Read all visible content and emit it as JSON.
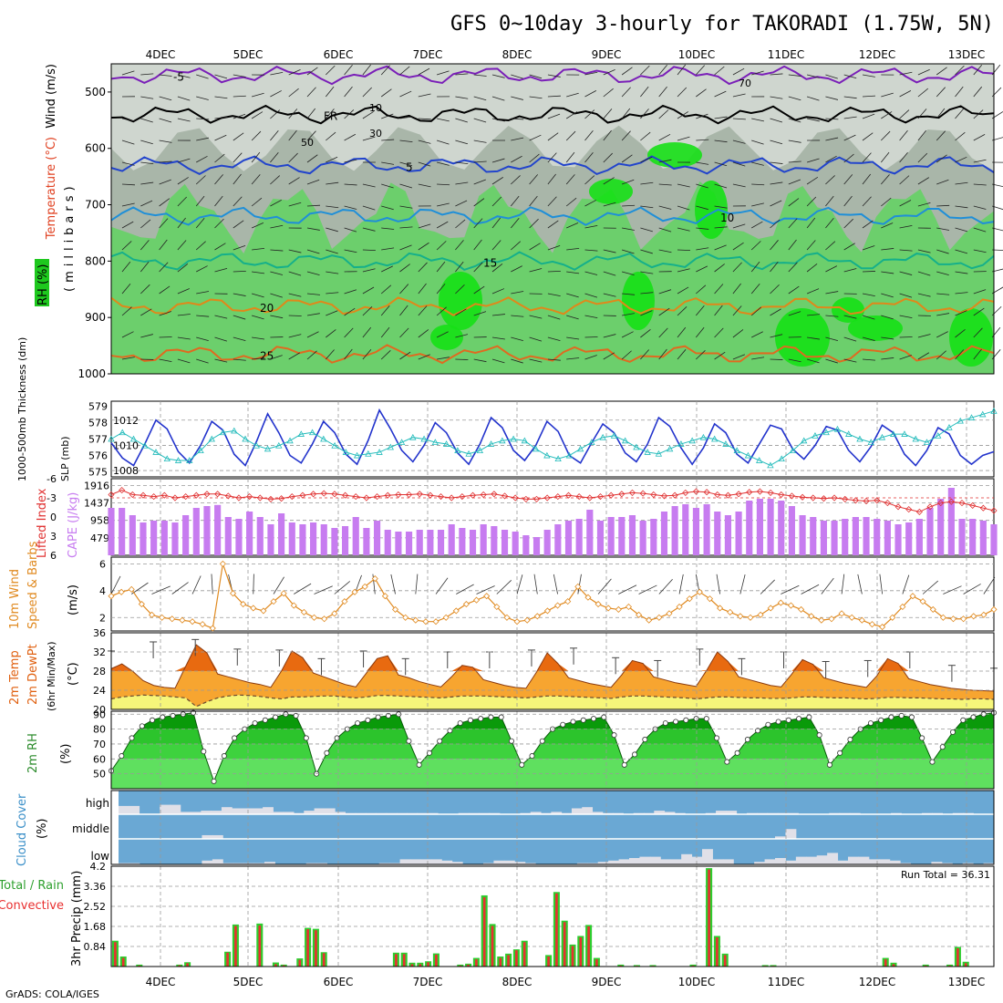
{
  "title": "GFS 0~10day 3-hourly for TAKORADI (1.75W, 5N)",
  "footer": "GrADS: COLA/IGES",
  "dates": [
    "4DEC",
    "5DEC",
    "6DEC",
    "7DEC",
    "8DEC",
    "9DEC",
    "10DEC",
    "11DEC",
    "12DEC",
    "13DEC"
  ],
  "colors": {
    "rh_light": "#cfd6cf",
    "rh_mid": "#a9b6a9",
    "rh_dark": "#6ccf6c",
    "rh_bright": "#16e016",
    "slp": "#2233cc",
    "thickness": "#22bbbb",
    "cape": "#c77cf0",
    "lifted": "#e03030",
    "wind10": "#e08a20",
    "temp_fill": "#f7a530",
    "temp_max": "#e86a10",
    "dew_fill": "#f6f67a",
    "rh2m_dark": "#0a9a0a",
    "rh2m_mid": "#2cc42c",
    "rh2m_light": "#5fe05f",
    "cloud_bg": "#6aa8d4",
    "cloud_bar": "#e0e0e8",
    "precip_total": "#2ecc2e",
    "precip_conv": "#e83030"
  },
  "panel_labels": {
    "upper_wind": "Wind (m/s)",
    "upper_temp": "Temperature (°C)",
    "upper_rh": "RH (%)",
    "upper_unit": "(millibars)",
    "thick_label": "1000-500mb Thickness (dm)",
    "slp_label": "SLP (mb)",
    "lifted_label": "Lifted Index",
    "cape_label": "CAPE (J/kg)",
    "wind10_a": "10m Wind",
    "wind10_b": "Speed & Barbs",
    "wind10_unit": "(m/s)",
    "temp_a": "2m Temp",
    "temp_b": "2m DewPt",
    "temp_c": "(6hr Min/Max)",
    "temp_unit": "(°C)",
    "rh2m_label": "2m RH",
    "rh2m_unit": "(%)",
    "cloud_label": "Cloud Cover",
    "cloud_unit": "(%)",
    "cloud_high": "high",
    "cloud_middle": "middle",
    "cloud_low": "low",
    "precip_total": "Total / Rain",
    "precip_conv": "Convective",
    "precip_unit": "3hr Precip (mm)",
    "run_total": "Run Total = 36.31"
  },
  "chart_data": [
    {
      "type": "heatmap",
      "name": "upper-air cross-section",
      "y_ticks": [
        500,
        600,
        700,
        800,
        900,
        1000
      ],
      "ylim": [
        450,
        1000
      ],
      "isotherm_labels": [
        "-5",
        "FR",
        "5",
        "10",
        "15",
        "20",
        "25"
      ],
      "rh_labels": [
        "10",
        "30",
        "50",
        "70"
      ]
    },
    {
      "type": "line",
      "name": "SLP and thickness",
      "slp_ticks": [
        1008,
        1010,
        1012
      ],
      "thickness_ticks": [
        575,
        576,
        577,
        578,
        579
      ],
      "slp": [
        1010.2,
        1009.0,
        1008.4,
        1010.1,
        1012.0,
        1011.3,
        1009.5,
        1008.6,
        1010.0,
        1011.9,
        1011.2,
        1009.3,
        1008.4,
        1010.3,
        1012.5,
        1011.0,
        1009.2,
        1008.6,
        1010.1,
        1011.9,
        1011.0,
        1009.3,
        1008.5,
        1010.4,
        1012.8,
        1011.3,
        1009.6,
        1008.7,
        1010.0,
        1011.8,
        1011.0,
        1009.4,
        1008.5,
        1010.1,
        1012.2,
        1011.4,
        1009.6,
        1008.8,
        1010.0,
        1011.9,
        1011.1,
        1009.2,
        1008.6,
        1010.2,
        1011.7,
        1011.0,
        1009.4,
        1008.7,
        1010.1,
        1012.2,
        1011.5,
        1009.8,
        1008.5,
        1009.8,
        1011.7,
        1011.0,
        1009.3,
        1008.6,
        1010.1,
        1011.6,
        1011.3,
        1009.7,
        1008.9,
        1010.0,
        1011.5,
        1011.2,
        1009.6,
        1008.7,
        1009.9,
        1011.6,
        1011.0,
        1009.3,
        1008.4,
        1009.6,
        1011.4,
        1010.9,
        1009.2,
        1008.5,
        1009.2,
        1009.5
      ],
      "thickness": [
        577.0,
        577.4,
        577.0,
        576.6,
        576.2,
        575.8,
        575.7,
        575.7,
        576.3,
        577.0,
        577.4,
        577.5,
        577.0,
        576.6,
        576.4,
        576.6,
        576.9,
        577.3,
        577.4,
        577.0,
        576.6,
        576.2,
        576.0,
        576.1,
        576.2,
        576.5,
        576.8,
        577.1,
        577.0,
        576.8,
        576.7,
        576.3,
        576.1,
        576.3,
        576.7,
        576.9,
        577.0,
        576.9,
        576.4,
        576.0,
        575.8,
        576.0,
        576.4,
        576.8,
        577.1,
        577.2,
        576.9,
        576.5,
        576.2,
        576.1,
        576.4,
        576.7,
        576.9,
        577.1,
        577.0,
        576.7,
        576.3,
        576.0,
        575.7,
        575.4,
        575.8,
        576.3,
        576.9,
        577.2,
        577.4,
        577.6,
        577.3,
        577.0,
        576.8,
        577.1,
        577.3,
        577.3,
        577.0,
        576.8,
        577.2,
        577.7,
        578.1,
        578.3,
        578.5,
        578.7
      ]
    },
    {
      "type": "bar",
      "name": "CAPE and Lifted Index",
      "cape_ticks": [
        479,
        958,
        1437,
        1916
      ],
      "li_ticks": [
        -6,
        -3,
        0,
        3,
        6
      ],
      "cape": [
        1300,
        1300,
        1100,
        900,
        950,
        950,
        900,
        1100,
        1300,
        1350,
        1380,
        1050,
        1000,
        1200,
        1050,
        850,
        1150,
        900,
        850,
        900,
        850,
        750,
        800,
        1050,
        750,
        950,
        700,
        650,
        650,
        700,
        700,
        700,
        850,
        750,
        700,
        850,
        800,
        700,
        650,
        550,
        500,
        700,
        850,
        950,
        1000,
        1250,
        950,
        1050,
        1050,
        1100,
        950,
        1000,
        1200,
        1350,
        1400,
        1300,
        1400,
        1200,
        1100,
        1200,
        1500,
        1550,
        1550,
        1500,
        1350,
        1100,
        1050,
        950,
        950,
        1000,
        1050,
        1050,
        1000,
        950,
        850,
        900,
        1000,
        1300,
        1550,
        1850,
        1000,
        1000,
        950,
        850
      ],
      "lifted_index": [
        -3.5,
        -4.2,
        -3.5,
        -3.4,
        -3.2,
        -3.4,
        -3.0,
        -3.2,
        -3.4,
        -3.6,
        -3.6,
        -3.3,
        -3.0,
        -3.2,
        -3.0,
        -2.8,
        -2.9,
        -3.2,
        -3.4,
        -3.6,
        -3.7,
        -3.6,
        -3.4,
        -3.2,
        -3.0,
        -3.2,
        -3.4,
        -3.5,
        -3.5,
        -3.6,
        -3.4,
        -3.2,
        -3.0,
        -3.2,
        -3.4,
        -3.5,
        -3.6,
        -3.3,
        -3.0,
        -2.8,
        -2.8,
        -3.0,
        -3.2,
        -3.4,
        -3.2,
        -3.0,
        -3.2,
        -3.4,
        -3.6,
        -3.8,
        -3.7,
        -3.5,
        -3.3,
        -3.4,
        -3.8,
        -4.0,
        -3.9,
        -3.5,
        -3.4,
        -3.6,
        -3.9,
        -4.0,
        -3.8,
        -3.5,
        -3.3,
        -3.1,
        -3.0,
        -2.9,
        -3.0,
        -2.8,
        -2.6,
        -2.5,
        -2.6,
        -2.2,
        -1.6,
        -1.2,
        -0.8,
        -1.6,
        -2.2,
        -2.4,
        -2.2,
        -1.8,
        -1.4,
        -1.0
      ]
    },
    {
      "type": "line",
      "name": "10m wind speed",
      "y_ticks": [
        2,
        4,
        6
      ],
      "ylim": [
        1,
        6.5
      ],
      "speed": [
        3.6,
        3.9,
        4.1,
        3.0,
        2.2,
        2.0,
        1.9,
        1.8,
        1.7,
        1.5,
        1.2,
        6.0,
        3.8,
        3.0,
        2.7,
        2.5,
        3.2,
        3.8,
        2.9,
        2.4,
        2.0,
        1.9,
        2.3,
        3.2,
        3.9,
        4.3,
        4.9,
        3.6,
        2.6,
        2.0,
        1.8,
        1.7,
        1.7,
        2.0,
        2.5,
        3.0,
        3.3,
        3.6,
        2.8,
        2.0,
        1.7,
        1.8,
        2.1,
        2.5,
        2.9,
        3.2,
        4.3,
        3.5,
        3.0,
        2.7,
        2.6,
        2.8,
        2.2,
        1.8,
        2.0,
        2.3,
        2.8,
        3.4,
        3.9,
        3.4,
        2.7,
        2.4,
        2.1,
        2.0,
        2.2,
        2.7,
        3.1,
        2.9,
        2.6,
        2.1,
        1.8,
        1.9,
        2.3,
        2.0,
        1.8,
        1.5,
        1.3,
        2.0,
        2.8,
        3.6,
        3.2,
        2.6,
        2.0,
        1.9,
        1.9,
        2.1,
        2.2,
        2.6
      ]
    },
    {
      "type": "area",
      "name": "2m temperature and dew point",
      "y_ticks": [
        20,
        24,
        28,
        32,
        36
      ],
      "ylim": [
        20,
        36
      ],
      "temp": [
        28.5,
        29.5,
        28.0,
        26.0,
        25.0,
        24.6,
        24.4,
        29.0,
        33.5,
        31.8,
        27.4,
        26.8,
        26.2,
        25.6,
        25.2,
        24.6,
        28.0,
        32.2,
        30.8,
        27.6,
        26.8,
        26.0,
        25.2,
        24.7,
        27.6,
        30.6,
        31.2,
        27.2,
        26.6,
        25.8,
        25.2,
        24.7,
        26.8,
        29.2,
        28.8,
        26.2,
        25.6,
        25.0,
        24.6,
        24.4,
        27.8,
        31.8,
        29.6,
        26.6,
        26.0,
        25.4,
        25.0,
        24.6,
        27.2,
        30.2,
        29.6,
        26.8,
        26.2,
        25.6,
        25.2,
        24.8,
        28.2,
        32.0,
        30.0,
        26.8,
        26.2,
        25.6,
        25.0,
        24.7,
        27.4,
        30.4,
        29.4,
        26.6,
        26.0,
        25.4,
        25.0,
        24.6,
        27.0,
        30.6,
        29.6,
        26.4,
        25.8,
        25.2,
        24.8,
        24.4,
        24.2,
        24.0,
        23.9,
        23.8
      ],
      "dewpoint": [
        22.2,
        22.6,
        22.8,
        23.0,
        22.9,
        22.8,
        22.6,
        22.4,
        20.6,
        21.6,
        22.4,
        22.8,
        23.0,
        22.9,
        22.7,
        22.4,
        22.2,
        22.6,
        22.6,
        22.7,
        22.8,
        22.8,
        22.6,
        22.4,
        22.6,
        22.9,
        22.9,
        22.8,
        22.7,
        22.6,
        22.5,
        22.4,
        22.6,
        22.8,
        22.8,
        22.8,
        22.7,
        22.6,
        22.5,
        22.4,
        22.6,
        22.8,
        22.8,
        22.7,
        22.6,
        22.5,
        22.4,
        22.3,
        22.6,
        22.8,
        22.8,
        22.7,
        22.6,
        22.5,
        22.4,
        22.2,
        22.4,
        22.6,
        22.6,
        22.5,
        22.4,
        22.4,
        22.3,
        22.3,
        22.4,
        22.6,
        22.6,
        22.5,
        22.4,
        22.4,
        22.3,
        22.2,
        22.3,
        22.5,
        22.5,
        22.4,
        22.4,
        22.3,
        22.2,
        22.2,
        22.1,
        22.2,
        22.2,
        22.1
      ],
      "max6hr": [
        32.2,
        null,
        34.1,
        null,
        34.6,
        null,
        32.6,
        null,
        32.4,
        null,
        30.6,
        null,
        32.2,
        null,
        30.6,
        null,
        32.0,
        null,
        32.0,
        null,
        32.4,
        null,
        32.8,
        null,
        30.8,
        null,
        30.2,
        null,
        32.6,
        null,
        30.6,
        null,
        32.0,
        null,
        30.0,
        null,
        30.2,
        null,
        32.0,
        null,
        29.2,
        null,
        28.6
      ]
    },
    {
      "type": "area",
      "name": "2m relative humidity",
      "y_ticks": [
        50,
        60,
        70,
        80,
        90
      ],
      "ylim": [
        40,
        92
      ],
      "rh": [
        52,
        62,
        74,
        82,
        86,
        88,
        89,
        90,
        91,
        65,
        45,
        62,
        74,
        80,
        84,
        86,
        88,
        90,
        89,
        74,
        50,
        64,
        74,
        80,
        84,
        86,
        88,
        89,
        90,
        72,
        56,
        64,
        72,
        79,
        84,
        86,
        87,
        88,
        88,
        72,
        56,
        62,
        72,
        80,
        83,
        85,
        86,
        87,
        88,
        76,
        56,
        63,
        73,
        80,
        84,
        85,
        86,
        87,
        87,
        74,
        58,
        64,
        73,
        79,
        83,
        85,
        86,
        87,
        88,
        76,
        56,
        64,
        73,
        80,
        84,
        86,
        88,
        89,
        88,
        74,
        58,
        68,
        78,
        86,
        88,
        90,
        91
      ]
    },
    {
      "type": "bar",
      "name": "cloud cover",
      "y_ticks": [
        "high",
        "middle",
        "low"
      ],
      "high": [
        35,
        35,
        0,
        0,
        40,
        40,
        10,
        10,
        15,
        15,
        30,
        25,
        25,
        25,
        30,
        10,
        10,
        5,
        15,
        25,
        25,
        10,
        5,
        5,
        5,
        5,
        5,
        5,
        5,
        5,
        5,
        0,
        0,
        5,
        5,
        5,
        5,
        0,
        0,
        5,
        10,
        5,
        10,
        5,
        25,
        30,
        10,
        5,
        5,
        0,
        5,
        5,
        15,
        10,
        5,
        0,
        0,
        5,
        15,
        15,
        0,
        5,
        5,
        5,
        5,
        5,
        0,
        0,
        0,
        5,
        5,
        5,
        0,
        0,
        0,
        5,
        0,
        0,
        5,
        5,
        0,
        5,
        5,
        0,
        0
      ],
      "middle": [
        0,
        0,
        0,
        0,
        0,
        0,
        0,
        0,
        15,
        15,
        0,
        0,
        0,
        0,
        0,
        0,
        0,
        0,
        0,
        0,
        0,
        0,
        0,
        0,
        0,
        0,
        0,
        0,
        0,
        0,
        0,
        0,
        0,
        0,
        0,
        0,
        0,
        0,
        0,
        0,
        0,
        0,
        0,
        0,
        0,
        0,
        0,
        0,
        0,
        0,
        0,
        0,
        0,
        0,
        0,
        0,
        0,
        0,
        0,
        0,
        0,
        0,
        0,
        10,
        40,
        0,
        0,
        0,
        0,
        0,
        0,
        0,
        0,
        0,
        0,
        0,
        0,
        0,
        0,
        0,
        0,
        0,
        0,
        0
      ],
      "low": [
        5,
        5,
        0,
        0,
        0,
        0,
        0,
        0,
        15,
        20,
        5,
        5,
        5,
        5,
        10,
        0,
        0,
        0,
        5,
        5,
        0,
        0,
        0,
        0,
        0,
        5,
        5,
        20,
        20,
        20,
        20,
        15,
        10,
        0,
        0,
        5,
        15,
        15,
        10,
        5,
        0,
        0,
        0,
        0,
        5,
        5,
        10,
        15,
        20,
        25,
        30,
        30,
        20,
        20,
        40,
        30,
        60,
        20,
        20,
        0,
        0,
        10,
        20,
        25,
        15,
        30,
        30,
        35,
        45,
        15,
        30,
        30,
        20,
        20,
        15,
        5,
        0,
        0,
        10,
        5,
        0,
        5,
        0,
        5
      ]
    },
    {
      "type": "bar",
      "name": "3hr precipitation",
      "y_ticks": [
        0.84,
        1.68,
        2.52,
        3.36,
        4.2
      ],
      "ylim": [
        0,
        4.2
      ],
      "total": [
        1.08,
        0.42,
        0,
        0.08,
        0,
        0,
        0,
        0,
        0.08,
        0.18,
        0,
        0,
        0,
        0,
        0.62,
        1.76,
        0,
        0,
        1.8,
        0,
        0.17,
        0.08,
        0,
        0.34,
        1.62,
        1.58,
        0.6,
        0,
        0,
        0,
        0,
        0,
        0,
        0,
        0,
        0.58,
        0.58,
        0.16,
        0.16,
        0.22,
        0.55,
        0,
        0,
        0.08,
        0.12,
        0.36,
        2.98,
        1.78,
        0.42,
        0.54,
        0.72,
        1.08,
        0,
        0,
        0.48,
        3.12,
        1.92,
        0.92,
        1.28,
        1.74,
        0.36,
        0,
        0,
        0.08,
        0,
        0.06,
        0,
        0.06,
        0,
        0,
        0,
        0,
        0.08,
        0,
        4.12,
        1.28,
        0.54,
        0,
        0,
        0,
        0,
        0.06,
        0.06,
        0,
        0,
        0,
        0,
        0,
        0,
        0,
        0,
        0,
        0,
        0,
        0,
        0,
        0.36,
        0.16,
        0,
        0,
        0,
        0.08,
        0,
        0,
        0.08,
        0.82,
        0.2,
        0,
        0,
        0
      ],
      "convective": [
        1.02,
        0.36,
        0,
        0.04,
        0,
        0,
        0,
        0,
        0.05,
        0.14,
        0,
        0,
        0,
        0,
        0.58,
        1.7,
        0,
        0,
        1.72,
        0,
        0.1,
        0.05,
        0,
        0.28,
        1.56,
        1.52,
        0.56,
        0,
        0,
        0,
        0,
        0,
        0,
        0,
        0,
        0.52,
        0.52,
        0.1,
        0.1,
        0.18,
        0.5,
        0,
        0,
        0.04,
        0.08,
        0.3,
        2.9,
        1.7,
        0.36,
        0.48,
        0.68,
        1.02,
        0,
        0,
        0.42,
        3.06,
        1.86,
        0.86,
        1.22,
        1.68,
        0.3,
        0,
        0,
        0.04,
        0,
        0.03,
        0,
        0.03,
        0,
        0,
        0,
        0,
        0.04,
        0,
        4.06,
        1.22,
        0.48,
        0,
        0,
        0,
        0,
        0.03,
        0.03,
        0,
        0,
        0,
        0,
        0,
        0,
        0,
        0,
        0,
        0,
        0,
        0,
        0,
        0.3,
        0.1,
        0,
        0,
        0,
        0.04,
        0,
        0,
        0.04,
        0.76,
        0.14,
        0,
        0,
        0
      ]
    }
  ]
}
